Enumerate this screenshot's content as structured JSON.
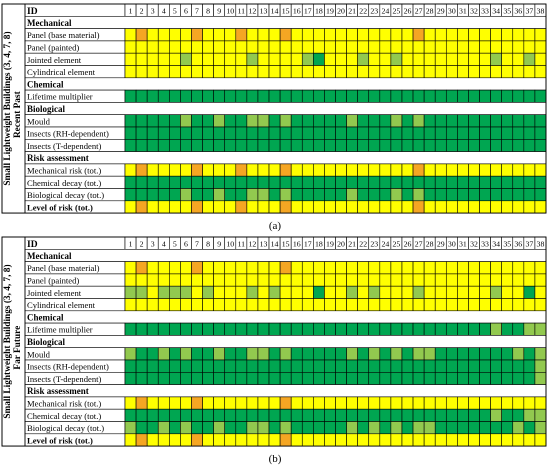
{
  "colors": {
    "Y": "#ffff00",
    "G": "#00a651",
    "L": "#92c94f",
    "O": "#f5a623",
    "empty": "#ffffff",
    "border": "#000000"
  },
  "legend_codes": {
    "Y": "yellow",
    "G": "dark green",
    "L": "light green",
    "O": "orange"
  },
  "chart_data": [
    {
      "type": "heatmap",
      "caption": "(a)",
      "side_label": "Small Lightweight Buildings (3, 4, 7, 8)",
      "period_label": "Recent Past",
      "id_label": "ID",
      "columns": [
        "1",
        "2",
        "3",
        "4",
        "5",
        "6",
        "7",
        "8",
        "9",
        "10",
        "11",
        "12",
        "13",
        "14",
        "15",
        "16",
        "17",
        "18",
        "19",
        "20",
        "21",
        "22",
        "23",
        "24",
        "25",
        "26",
        "27",
        "28",
        "29",
        "30",
        "31",
        "32",
        "33",
        "34",
        "35",
        "36",
        "37",
        "38"
      ],
      "rows": [
        {
          "label": "Mechanical",
          "kind": "header",
          "cells": ""
        },
        {
          "label": "Panel (base material)",
          "kind": "data",
          "cells": "YOYYYYOYYYOYYYOYYYYYYYYYYYOYYYYYYYYYYY"
        },
        {
          "label": "Panel (painted)",
          "kind": "data",
          "cells": "YYYYYYYYYYYYYYYYYYYYYYYYYYYYYYYYYYYYYY"
        },
        {
          "label": "Jointed element",
          "kind": "data",
          "cells": "YYYYYLYYYYYLYYYYLGYYYLYYLYYYYYYYYLYYLY"
        },
        {
          "label": "Cylindrical element",
          "kind": "data",
          "cells": "YYYYYYYYYYYYYYYYYYYYYYYYYYYYYYYYYYYYYY"
        },
        {
          "label": "Chemical",
          "kind": "header",
          "cells": ""
        },
        {
          "label": "Lifetime multiplier",
          "kind": "data",
          "cells": "GGGGGGGGGGGGGGGGGGGGGGGGGGGGGGGGGGGGGG"
        },
        {
          "label": "Biological",
          "kind": "header",
          "cells": ""
        },
        {
          "label": "Mould",
          "kind": "data",
          "cells": "GGGGGLGGLGGLLGLGGGGGLGGGLGLGGGGGGGGGGG"
        },
        {
          "label": "Insects (RH-dependent)",
          "kind": "data",
          "cells": "GGGGGGGGGGGGGGGGGGGGGGGGGGGGGGGGGGGGGG"
        },
        {
          "label": "Insects (T-dependent)",
          "kind": "data",
          "cells": "GGGGGGGGGGGGGGGGGGGGGGGGGGGGGGGGGGGGGG"
        },
        {
          "label": "Risk assessment",
          "kind": "header",
          "cells": ""
        },
        {
          "label": "Mechanical risk (tot.)",
          "kind": "data",
          "cells": "YOYYYYOYYYOYYYOYYYYYYYYYYYOYYYYYYYYYYY"
        },
        {
          "label": "Chemical decay (tot.)",
          "kind": "data",
          "cells": "GGGGGGGGGGGGGGGGGGGGGGGGGGGGGGGGGGGGGG"
        },
        {
          "label": "Biological decay (tot.)",
          "kind": "data",
          "cells": "GGGGGLGGLGGLLGLGGGGGLGGGLGLGGGGGGGGGGG"
        },
        {
          "label": "Level of risk (tot.)",
          "kind": "data",
          "cells": "YOYYYYOYYYOYYYOYYYYYYYYYYYOYYYYYYYYYYY"
        }
      ]
    },
    {
      "type": "heatmap",
      "caption": "(b)",
      "side_label": "Small Lightweight Buildings (3, 4, 7, 8)",
      "period_label": "Far Future",
      "id_label": "ID",
      "columns": [
        "1",
        "2",
        "3",
        "4",
        "5",
        "6",
        "7",
        "8",
        "9",
        "10",
        "11",
        "12",
        "13",
        "14",
        "15",
        "16",
        "17",
        "18",
        "19",
        "20",
        "21",
        "22",
        "23",
        "24",
        "25",
        "26",
        "27",
        "28",
        "29",
        "30",
        "31",
        "32",
        "33",
        "34",
        "35",
        "36",
        "37",
        "38"
      ],
      "rows": [
        {
          "label": "Mechanical",
          "kind": "header",
          "cells": ""
        },
        {
          "label": "Panel (base material)",
          "kind": "data",
          "cells": "YOYYYYOYYYYYYYOYYYYYYYYYYYYYYYYYYYYYYY"
        },
        {
          "label": "Panel (painted)",
          "kind": "data",
          "cells": "YYYYYYYYYYYYYYYYYYYYYYYYYYYYYYYYYYYYYY"
        },
        {
          "label": "Jointed element",
          "kind": "data",
          "cells": "LLYLLLYLYYYLYLYYYGYYLYLYYYLYYYYYYLYYGY"
        },
        {
          "label": "Cylindrical element",
          "kind": "data",
          "cells": "YYYYYYYYYYYYYYYYYYYYYYYYYYYYYYYYYYYYYY"
        },
        {
          "label": "Chemical",
          "kind": "header",
          "cells": ""
        },
        {
          "label": "Lifetime multiplier",
          "kind": "data",
          "cells": "GGGGGGGGGGGGGGGGGGGGGGGGGGGGGGGGGLGGLL"
        },
        {
          "label": "Biological",
          "kind": "header",
          "cells": ""
        },
        {
          "label": "Mould",
          "kind": "data",
          "cells": "LGGLGLGGLGGLLGLGGGGGLGLGLGLLGGGGGGGLGL"
        },
        {
          "label": "Insects (RH-dependent)",
          "kind": "data",
          "cells": "GGGGGGGGGGGGGGGGGGGGGGGGGGGGGGGGGGGGGL"
        },
        {
          "label": "Insects (T-dependent)",
          "kind": "data",
          "cells": "GGGGGGGGGGGGGGGGGGGGGGGGGGGGGGGGGGGGGL"
        },
        {
          "label": "Risk assessment",
          "kind": "header",
          "cells": ""
        },
        {
          "label": "Mechanical risk (tot.)",
          "kind": "data",
          "cells": "YOYYYYOYYYYYYYOYYYYYYYYYYYYYYYYYYYYYYY"
        },
        {
          "label": "Chemical decay (tot.)",
          "kind": "data",
          "cells": "GGGGGGGGGGGGGGGGGGGGGGGGGGGGGGGGGLGGLL"
        },
        {
          "label": "Biological decay (tot.)",
          "kind": "data",
          "cells": "LGGLGLGGLGGLLGLGGGGGLGLGLGLLGGGGGGGLGL"
        },
        {
          "label": "Level of risk (tot.)",
          "kind": "data",
          "cells": "YOYYYYOYYYYYYYOYYYYYYYYYYYYYYYYYYYYYYY"
        }
      ]
    }
  ]
}
